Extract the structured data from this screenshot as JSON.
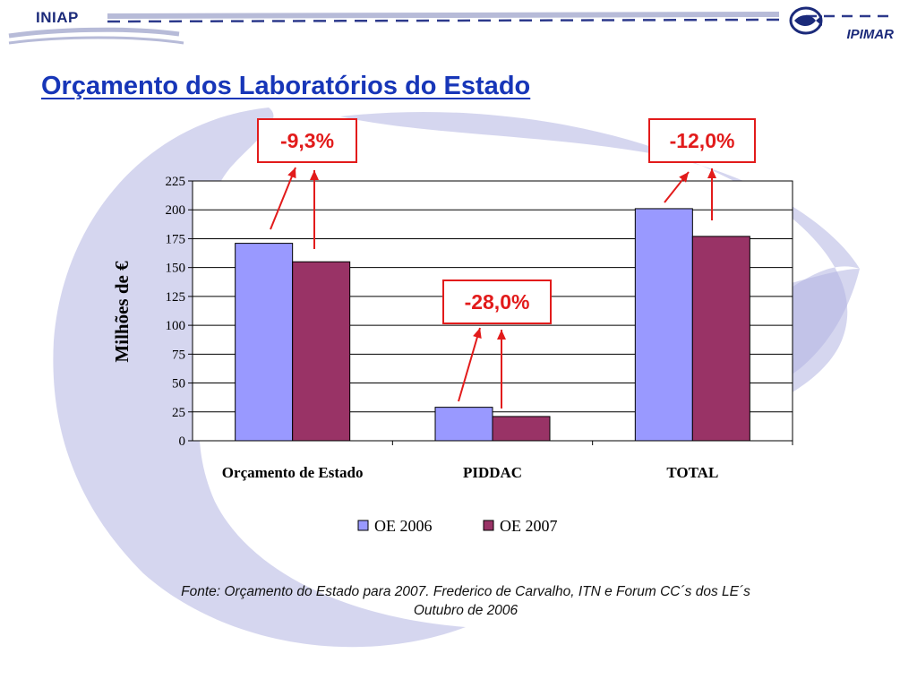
{
  "header": {
    "left_logo": "INIAP",
    "right_logo": "IPIMAR",
    "right_logo_icon": "fish-emblem-icon",
    "accent": "#1b2a7a"
  },
  "title": "Orçamento dos Laboratórios do Estado",
  "annotations": [
    {
      "label": "-9,3%",
      "category": "Orçamento de Estado"
    },
    {
      "label": "-28,0%",
      "category": "PIDDAC"
    },
    {
      "label": "-12,0%",
      "category": "TOTAL"
    }
  ],
  "chart_data": {
    "type": "bar",
    "title": "",
    "xlabel": "",
    "ylabel": "Milhões de €",
    "categories": [
      "Orçamento de Estado",
      "PIDDAC",
      "TOTAL"
    ],
    "series": [
      {
        "name": "OE 2006",
        "values": [
          171,
          29,
          201
        ],
        "color": "#9999ff"
      },
      {
        "name": "OE 2007",
        "values": [
          155,
          21,
          177
        ],
        "color": "#993366"
      }
    ],
    "ylim": [
      0,
      225
    ],
    "yticks": [
      0,
      25,
      50,
      75,
      100,
      125,
      150,
      175,
      200,
      225
    ],
    "grid": true,
    "legend": "bottom"
  },
  "source": {
    "line1": "Fonte: Orçamento do Estado para 2007. Frederico de Carvalho, ITN e Forum CC´s dos LE´s",
    "line2": "Outubro de 2006"
  }
}
